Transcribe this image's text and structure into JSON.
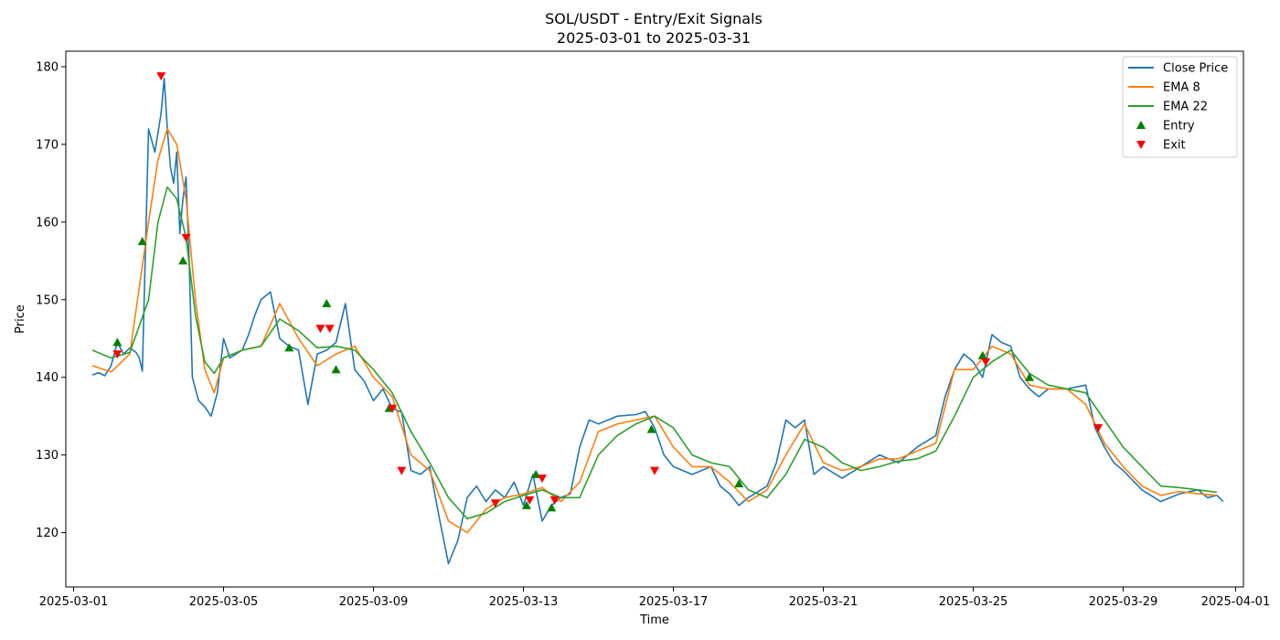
{
  "chart_data": {
    "type": "line",
    "title": "SOL/USDT - Entry/Exit Signals",
    "subtitle": "2025-03-01 to 2025-03-31",
    "xlabel": "Time",
    "ylabel": "Price",
    "xlim": [
      "2025-02-28T19:00",
      "2025-04-01T05:00"
    ],
    "ylim": [
      113,
      182
    ],
    "x_ticks": [
      "2025-03-01",
      "2025-03-05",
      "2025-03-09",
      "2025-03-13",
      "2025-03-17",
      "2025-03-21",
      "2025-03-25",
      "2025-03-29",
      "2025-04-01"
    ],
    "y_ticks": [
      120,
      130,
      140,
      150,
      160,
      170,
      180
    ],
    "grid": false,
    "legend_position": "top-right",
    "colors": {
      "close": "#1f77b4",
      "ema8": "#ff7f0e",
      "ema22": "#2ca02c",
      "entry": "#008000",
      "exit": "#ff0000"
    },
    "legend": [
      {
        "label": "Close Price",
        "kind": "line",
        "color": "#1f77b4"
      },
      {
        "label": "EMA 8",
        "kind": "line",
        "color": "#ff7f0e"
      },
      {
        "label": "EMA 22",
        "kind": "line",
        "color": "#2ca02c"
      },
      {
        "label": "Entry",
        "kind": "up-triangle",
        "color": "#008000"
      },
      {
        "label": "Exit",
        "kind": "down-triangle",
        "color": "#ff0000"
      }
    ],
    "series": [
      {
        "name": "Close Price",
        "x": [
          "2025-03-01T12:00",
          "2025-03-01T16:00",
          "2025-03-01T20:00",
          "2025-03-02T00:00",
          "2025-03-02T04:00",
          "2025-03-02T08:00",
          "2025-03-02T12:00",
          "2025-03-02T16:00",
          "2025-03-02T18:00",
          "2025-03-02T20:00",
          "2025-03-03T00:00",
          "2025-03-03T04:00",
          "2025-03-03T06:00",
          "2025-03-03T08:00",
          "2025-03-03T10:00",
          "2025-03-03T12:00",
          "2025-03-03T14:00",
          "2025-03-03T16:00",
          "2025-03-03T18:00",
          "2025-03-03T20:00",
          "2025-03-03T22:00",
          "2025-03-04T00:00",
          "2025-03-04T02:00",
          "2025-03-04T04:00",
          "2025-03-04T08:00",
          "2025-03-04T12:00",
          "2025-03-04T16:00",
          "2025-03-04T20:00",
          "2025-03-05T00:00",
          "2025-03-05T04:00",
          "2025-03-05T08:00",
          "2025-03-05T12:00",
          "2025-03-05T16:00",
          "2025-03-05T20:00",
          "2025-03-06T00:00",
          "2025-03-06T06:00",
          "2025-03-06T12:00",
          "2025-03-06T18:00",
          "2025-03-07T00:00",
          "2025-03-07T06:00",
          "2025-03-07T12:00",
          "2025-03-07T18:00",
          "2025-03-08T00:00",
          "2025-03-08T06:00",
          "2025-03-08T12:00",
          "2025-03-08T18:00",
          "2025-03-09T00:00",
          "2025-03-09T06:00",
          "2025-03-09T12:00",
          "2025-03-09T18:00",
          "2025-03-10T00:00",
          "2025-03-10T06:00",
          "2025-03-10T12:00",
          "2025-03-10T18:00",
          "2025-03-11T00:00",
          "2025-03-11T06:00",
          "2025-03-11T12:00",
          "2025-03-11T18:00",
          "2025-03-12T00:00",
          "2025-03-12T06:00",
          "2025-03-12T12:00",
          "2025-03-12T18:00",
          "2025-03-13T00:00",
          "2025-03-13T06:00",
          "2025-03-13T12:00",
          "2025-03-13T18:00",
          "2025-03-14T00:00",
          "2025-03-14T06:00",
          "2025-03-14T12:00",
          "2025-03-14T18:00",
          "2025-03-15T00:00",
          "2025-03-15T12:00",
          "2025-03-16T00:00",
          "2025-03-16T06:00",
          "2025-03-16T12:00",
          "2025-03-16T18:00",
          "2025-03-17T00:00",
          "2025-03-17T12:00",
          "2025-03-18T00:00",
          "2025-03-18T06:00",
          "2025-03-18T12:00",
          "2025-03-18T18:00",
          "2025-03-19T00:00",
          "2025-03-19T12:00",
          "2025-03-19T18:00",
          "2025-03-20T00:00",
          "2025-03-20T06:00",
          "2025-03-20T12:00",
          "2025-03-20T18:00",
          "2025-03-21T00:00",
          "2025-03-21T12:00",
          "2025-03-22T00:00",
          "2025-03-22T12:00",
          "2025-03-23T00:00",
          "2025-03-23T12:00",
          "2025-03-24T00:00",
          "2025-03-24T06:00",
          "2025-03-24T12:00",
          "2025-03-24T18:00",
          "2025-03-25T00:00",
          "2025-03-25T06:00",
          "2025-03-25T12:00",
          "2025-03-25T18:00",
          "2025-03-26T00:00",
          "2025-03-26T06:00",
          "2025-03-26T12:00",
          "2025-03-26T18:00",
          "2025-03-27T00:00",
          "2025-03-27T12:00",
          "2025-03-28T00:00",
          "2025-03-28T06:00",
          "2025-03-28T12:00",
          "2025-03-28T18:00",
          "2025-03-29T00:00",
          "2025-03-29T12:00",
          "2025-03-30T00:00",
          "2025-03-30T12:00",
          "2025-03-31T00:00",
          "2025-03-31T06:00",
          "2025-03-31T12:00",
          "2025-03-31T16:00"
        ],
        "values": [
          140.3,
          140.6,
          140.2,
          141.5,
          144.5,
          143.0,
          143.8,
          143.2,
          142.5,
          140.8,
          172.0,
          169.0,
          171.5,
          174.0,
          178.5,
          172.0,
          167.0,
          165.0,
          169.0,
          158.5,
          163.0,
          165.8,
          155.0,
          140.0,
          137.0,
          136.2,
          135.0,
          138.0,
          145.0,
          142.5,
          143.0,
          143.5,
          145.5,
          148.0,
          150.0,
          151.0,
          145.0,
          144.0,
          143.5,
          136.5,
          143.0,
          143.5,
          144.5,
          149.5,
          141.0,
          139.5,
          137.0,
          138.5,
          136.0,
          135.5,
          128.0,
          127.5,
          128.5,
          122.0,
          116.0,
          119.0,
          124.5,
          126.0,
          124.0,
          125.5,
          124.5,
          126.5,
          123.5,
          127.5,
          121.5,
          123.5,
          124.5,
          125.0,
          131.0,
          134.5,
          134.0,
          135.0,
          135.2,
          135.6,
          133.5,
          130.0,
          128.5,
          127.5,
          128.5,
          126.0,
          125.0,
          123.5,
          124.5,
          126.0,
          129.0,
          134.5,
          133.5,
          134.5,
          127.5,
          128.5,
          127.0,
          128.5,
          130.0,
          129.0,
          131.0,
          132.5,
          137.5,
          141.0,
          143.0,
          142.0,
          140.0,
          145.5,
          144.5,
          144.0,
          140.0,
          138.5,
          137.5,
          138.5,
          138.5,
          139.0,
          133.5,
          131.0,
          129.0,
          128.0,
          125.5,
          124.0,
          125.0,
          125.5,
          124.5,
          124.8,
          124.0
        ]
      },
      {
        "name": "EMA 8",
        "x": [
          "2025-03-01T12:00",
          "2025-03-02T00:00",
          "2025-03-02T12:00",
          "2025-03-03T00:00",
          "2025-03-03T06:00",
          "2025-03-03T12:00",
          "2025-03-03T18:00",
          "2025-03-04T00:00",
          "2025-03-04T06:00",
          "2025-03-04T12:00",
          "2025-03-04T18:00",
          "2025-03-05T00:00",
          "2025-03-05T12:00",
          "2025-03-06T00:00",
          "2025-03-06T12:00",
          "2025-03-07T00:00",
          "2025-03-07T12:00",
          "2025-03-08T00:00",
          "2025-03-08T12:00",
          "2025-03-09T00:00",
          "2025-03-09T12:00",
          "2025-03-10T00:00",
          "2025-03-10T12:00",
          "2025-03-11T00:00",
          "2025-03-11T12:00",
          "2025-03-12T00:00",
          "2025-03-12T12:00",
          "2025-03-13T00:00",
          "2025-03-13T12:00",
          "2025-03-14T00:00",
          "2025-03-14T12:00",
          "2025-03-15T00:00",
          "2025-03-15T12:00",
          "2025-03-16T00:00",
          "2025-03-16T12:00",
          "2025-03-17T00:00",
          "2025-03-17T12:00",
          "2025-03-18T00:00",
          "2025-03-18T12:00",
          "2025-03-19T00:00",
          "2025-03-19T12:00",
          "2025-03-20T00:00",
          "2025-03-20T12:00",
          "2025-03-21T00:00",
          "2025-03-21T12:00",
          "2025-03-22T00:00",
          "2025-03-22T12:00",
          "2025-03-23T00:00",
          "2025-03-23T12:00",
          "2025-03-24T00:00",
          "2025-03-24T12:00",
          "2025-03-25T00:00",
          "2025-03-25T12:00",
          "2025-03-26T00:00",
          "2025-03-26T12:00",
          "2025-03-27T00:00",
          "2025-03-27T12:00",
          "2025-03-28T00:00",
          "2025-03-28T12:00",
          "2025-03-29T00:00",
          "2025-03-29T12:00",
          "2025-03-30T00:00",
          "2025-03-30T12:00",
          "2025-03-31T00:00",
          "2025-03-31T12:00"
        ],
        "values": [
          141.5,
          140.7,
          143.0,
          160.0,
          168.0,
          172.0,
          170.0,
          163.0,
          150.0,
          141.0,
          138.0,
          142.5,
          143.5,
          144.0,
          149.5,
          145.0,
          141.5,
          143.0,
          144.0,
          140.0,
          137.5,
          130.0,
          128.0,
          121.5,
          120.0,
          123.0,
          124.5,
          125.0,
          125.8,
          124.0,
          126.5,
          133.0,
          134.0,
          134.5,
          135.0,
          131.0,
          128.5,
          128.5,
          126.5,
          124.0,
          125.5,
          130.0,
          134.0,
          129.0,
          128.0,
          128.5,
          129.5,
          129.5,
          130.5,
          131.5,
          141.0,
          141.0,
          144.0,
          143.0,
          139.0,
          138.5,
          138.5,
          136.5,
          131.5,
          128.5,
          126.0,
          124.8,
          125.3,
          125.0,
          124.8
        ]
      },
      {
        "name": "EMA 22",
        "x": [
          "2025-03-01T12:00",
          "2025-03-02T00:00",
          "2025-03-02T12:00",
          "2025-03-03T00:00",
          "2025-03-03T06:00",
          "2025-03-03T12:00",
          "2025-03-03T18:00",
          "2025-03-04T00:00",
          "2025-03-04T06:00",
          "2025-03-04T12:00",
          "2025-03-04T18:00",
          "2025-03-05T00:00",
          "2025-03-05T12:00",
          "2025-03-06T00:00",
          "2025-03-06T12:00",
          "2025-03-07T00:00",
          "2025-03-07T12:00",
          "2025-03-08T00:00",
          "2025-03-08T12:00",
          "2025-03-09T00:00",
          "2025-03-09T12:00",
          "2025-03-10T00:00",
          "2025-03-10T12:00",
          "2025-03-11T00:00",
          "2025-03-11T12:00",
          "2025-03-12T00:00",
          "2025-03-12T12:00",
          "2025-03-13T00:00",
          "2025-03-13T12:00",
          "2025-03-14T00:00",
          "2025-03-14T12:00",
          "2025-03-15T00:00",
          "2025-03-15T12:00",
          "2025-03-16T00:00",
          "2025-03-16T12:00",
          "2025-03-17T00:00",
          "2025-03-17T12:00",
          "2025-03-18T00:00",
          "2025-03-18T12:00",
          "2025-03-19T00:00",
          "2025-03-19T12:00",
          "2025-03-20T00:00",
          "2025-03-20T12:00",
          "2025-03-21T00:00",
          "2025-03-21T12:00",
          "2025-03-22T00:00",
          "2025-03-22T12:00",
          "2025-03-23T00:00",
          "2025-03-23T12:00",
          "2025-03-24T00:00",
          "2025-03-24T12:00",
          "2025-03-25T00:00",
          "2025-03-25T12:00",
          "2025-03-26T00:00",
          "2025-03-26T12:00",
          "2025-03-27T00:00",
          "2025-03-27T12:00",
          "2025-03-28T00:00",
          "2025-03-28T12:00",
          "2025-03-29T00:00",
          "2025-03-29T12:00",
          "2025-03-30T00:00",
          "2025-03-30T12:00",
          "2025-03-31T00:00",
          "2025-03-31T12:00"
        ],
        "values": [
          143.5,
          142.5,
          143.2,
          150.0,
          160.0,
          164.5,
          163.0,
          158.0,
          148.0,
          142.0,
          140.5,
          142.5,
          143.5,
          144.0,
          147.5,
          146.0,
          143.8,
          144.0,
          143.5,
          141.0,
          138.0,
          133.0,
          129.0,
          124.5,
          121.8,
          122.5,
          124.0,
          124.8,
          125.5,
          124.5,
          124.5,
          130.0,
          132.5,
          134.0,
          135.0,
          133.5,
          130.0,
          129.0,
          128.5,
          125.5,
          124.5,
          127.5,
          132.0,
          131.0,
          129.0,
          128.0,
          128.5,
          129.2,
          129.5,
          130.5,
          135.0,
          140.0,
          142.0,
          143.5,
          140.5,
          139.0,
          138.5,
          138.0,
          134.5,
          131.0,
          128.5,
          126.0,
          125.8,
          125.5,
          125.2
        ]
      }
    ],
    "entries": [
      {
        "x": "2025-03-02T04:00",
        "y": 144.5
      },
      {
        "x": "2025-03-02T20:00",
        "y": 157.5
      },
      {
        "x": "2025-03-03T22:00",
        "y": 155.0
      },
      {
        "x": "2025-03-06T18:00",
        "y": 143.8
      },
      {
        "x": "2025-03-07T18:00",
        "y": 149.5
      },
      {
        "x": "2025-03-08T00:00",
        "y": 141.0
      },
      {
        "x": "2025-03-09T10:00",
        "y": 136.0
      },
      {
        "x": "2025-03-13T02:00",
        "y": 123.5
      },
      {
        "x": "2025-03-13T08:00",
        "y": 127.5
      },
      {
        "x": "2025-03-13T18:00",
        "y": 123.2
      },
      {
        "x": "2025-03-16T10:00",
        "y": 133.3
      },
      {
        "x": "2025-03-18T18:00",
        "y": 126.3
      },
      {
        "x": "2025-03-25T06:00",
        "y": 142.8
      },
      {
        "x": "2025-03-26T12:00",
        "y": 140.0
      }
    ],
    "exits": [
      {
        "x": "2025-03-02T04:00",
        "y": 143.0
      },
      {
        "x": "2025-03-03T08:00",
        "y": 178.8
      },
      {
        "x": "2025-03-04T00:00",
        "y": 158.0
      },
      {
        "x": "2025-03-07T14:00",
        "y": 146.3
      },
      {
        "x": "2025-03-07T20:00",
        "y": 146.3
      },
      {
        "x": "2025-03-09T12:00",
        "y": 136.0
      },
      {
        "x": "2025-03-09T18:00",
        "y": 128.0
      },
      {
        "x": "2025-03-12T06:00",
        "y": 123.8
      },
      {
        "x": "2025-03-13T04:00",
        "y": 124.2
      },
      {
        "x": "2025-03-13T12:00",
        "y": 127.0
      },
      {
        "x": "2025-03-13T20:00",
        "y": 124.2
      },
      {
        "x": "2025-03-16T12:00",
        "y": 128.0
      },
      {
        "x": "2025-03-25T08:00",
        "y": 142.0
      },
      {
        "x": "2025-03-28T08:00",
        "y": 133.5
      }
    ]
  }
}
